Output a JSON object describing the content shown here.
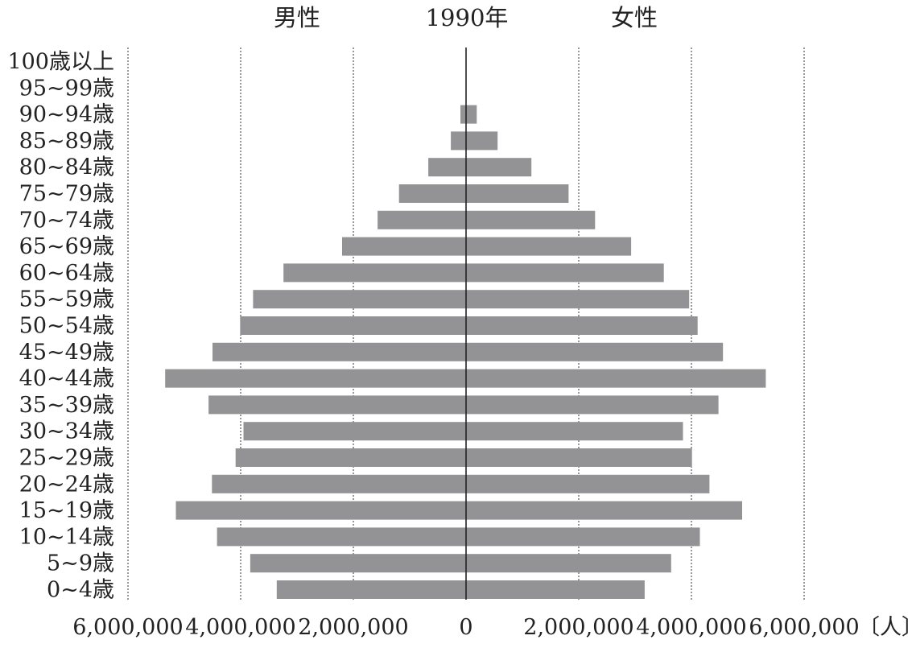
{
  "chart_data": {
    "type": "bar",
    "orientation": "horizontal",
    "title": "1990年",
    "left_label": "男性",
    "right_label": "女性",
    "unit": "〔人〕",
    "categories": [
      "100歳以上",
      "95~99歳",
      "90~94歳",
      "85~89歳",
      "80~84歳",
      "75~79歳",
      "70~74歳",
      "65~69歳",
      "60~64歳",
      "55~59歳",
      "50~54歳",
      "45~49歳",
      "40~44歳",
      "35~39歳",
      "30~34歳",
      "25~29歳",
      "20~24歳",
      "15~19歳",
      "10~14歳",
      "5~9歳",
      "0~4歳"
    ],
    "x_ticks": [
      "6,000,000",
      "4,000,000",
      "2,000,000",
      "0",
      "2,000,000",
      "4,000,000",
      "6,000,000"
    ],
    "xlim": [
      -6000000,
      6000000
    ],
    "grid": "vertical dotted",
    "series": [
      {
        "name": "男性",
        "values": [
          0,
          0,
          100000,
          270000,
          670000,
          1190000,
          1570000,
          2200000,
          3240000,
          3780000,
          4010000,
          4500000,
          5340000,
          4570000,
          3950000,
          4090000,
          4510000,
          5150000,
          4420000,
          3830000,
          3360000
        ]
      },
      {
        "name": "女性",
        "values": [
          0,
          0,
          190000,
          560000,
          1160000,
          1820000,
          2290000,
          2930000,
          3510000,
          3960000,
          4110000,
          4560000,
          5320000,
          4480000,
          3850000,
          4010000,
          4320000,
          4900000,
          4150000,
          3640000,
          3170000
        ]
      }
    ],
    "colors": {
      "bar": "#939396",
      "grid": "#333333",
      "axis": "#222222"
    }
  }
}
